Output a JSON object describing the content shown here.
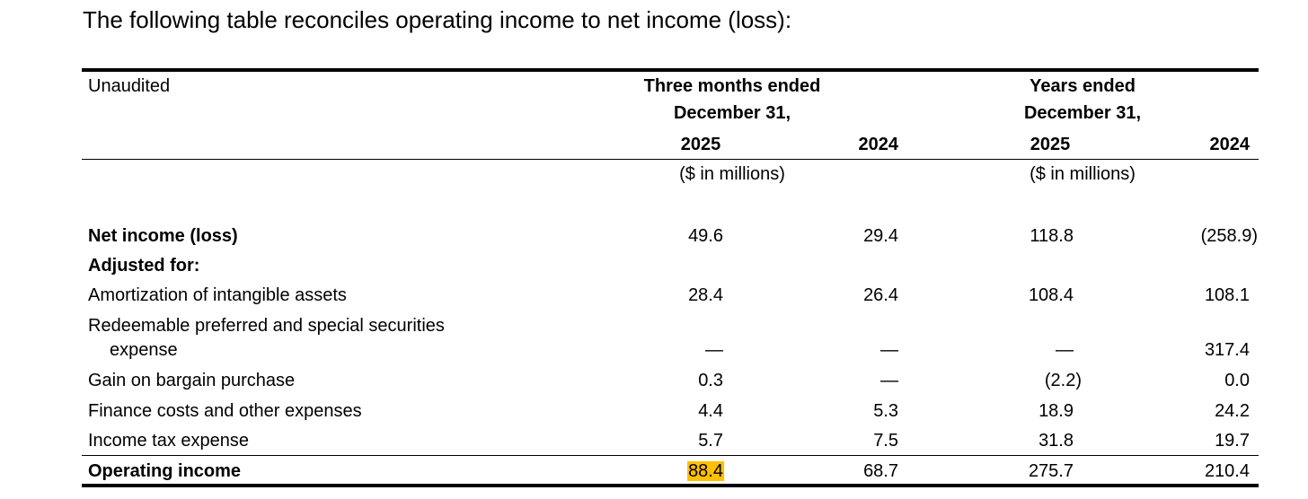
{
  "intro": "The following table reconciles operating income to net income (loss):",
  "header": {
    "label": "Unaudited",
    "group1_line1": "Three months ended",
    "group1_line2": "December 31,",
    "group2_line1": "Years ended",
    "group2_line2": "December 31,",
    "col1": "2025",
    "col2": "2024",
    "col3": "2025",
    "col4": "2024",
    "units1": "($ in millions)",
    "units2": "($ in millions)"
  },
  "rows": [
    {
      "label": "Net income (loss)",
      "values": [
        "49.6",
        "29.4",
        "118.8",
        "(258.9)"
      ]
    },
    {
      "label": "Adjusted for:"
    },
    {
      "label": "Amortization of intangible assets",
      "values": [
        "28.4",
        "26.4",
        "108.4",
        "108.1"
      ]
    },
    {
      "label": "Redeemable preferred and special securities",
      "label2": "expense",
      "values": [
        "—",
        "—",
        "—",
        "317.4"
      ]
    },
    {
      "label": "Gain on bargain purchase",
      "values": [
        "0.3",
        "—",
        "(2.2)",
        "0.0"
      ]
    },
    {
      "label": "Finance costs and other expenses",
      "values": [
        "4.4",
        "5.3",
        "18.9",
        "24.2"
      ]
    },
    {
      "label": "Income tax expense",
      "values": [
        "5.7",
        "7.5",
        "31.8",
        "19.7"
      ]
    },
    {
      "label": "Operating income",
      "values": [
        "88.4",
        "68.7",
        "275.7",
        "210.4"
      ]
    }
  ],
  "highlight_color": "#ffc000"
}
